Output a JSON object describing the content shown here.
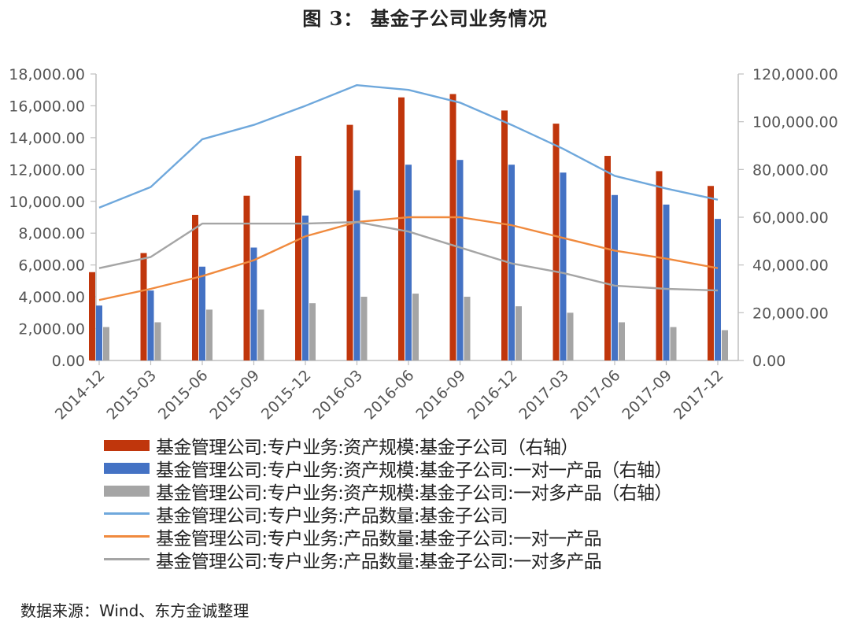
{
  "title": "图 3：   基金子公司业务情况",
  "source": "数据来源：Wind、东方金诚整理",
  "chart_data": {
    "type": "bar",
    "categories": [
      "2014-12",
      "2015-03",
      "2015-06",
      "2015-09",
      "2015-12",
      "2016-03",
      "2016-06",
      "2016-09",
      "2016-12",
      "2017-03",
      "2017-06",
      "2017-09",
      "2017-12"
    ],
    "left_axis": {
      "ylim": [
        0,
        18000
      ],
      "ticks": [
        "0.00",
        "2,000.00",
        "4,000.00",
        "6,000.00",
        "8,000.00",
        "10,000.00",
        "12,000.00",
        "14,000.00",
        "16,000.00",
        "18,000.00"
      ]
    },
    "right_axis": {
      "ylim": [
        0,
        120000
      ],
      "ticks": [
        "0.00",
        "20,000.00",
        "40,000.00",
        "60,000.00",
        "80,000.00",
        "100,000.00",
        "120,000.00"
      ]
    },
    "series": [
      {
        "name": "基金管理公司:专户业务:资产规模:基金子公司（右轴）",
        "kind": "bar",
        "axis": "right",
        "color": "#C0360C",
        "values": [
          37000,
          45000,
          61000,
          69000,
          85700,
          98700,
          110200,
          111600,
          104700,
          99200,
          85700,
          79300,
          73100
        ]
      },
      {
        "name": "基金管理公司:专户业务:资产规模:基金子公司:一对一产品（右轴）",
        "kind": "bar",
        "axis": "right",
        "color": "#4472C4",
        "values": [
          23000,
          29300,
          39300,
          47300,
          60700,
          71300,
          82000,
          84000,
          82000,
          78700,
          69300,
          65300,
          59300
        ]
      },
      {
        "name": "基金管理公司:专户业务:资产规模:基金子公司:一对多产品（右轴）",
        "kind": "bar",
        "axis": "right",
        "color": "#A5A5A5",
        "values": [
          14000,
          16000,
          21300,
          21300,
          24000,
          26700,
          28000,
          26700,
          22700,
          20000,
          16000,
          14000,
          12700
        ]
      },
      {
        "name": "基金管理公司:专户业务:产品数量:基金子公司",
        "kind": "line",
        "axis": "left",
        "color": "#6FA8DC",
        "values": [
          9600,
          10900,
          13900,
          14800,
          16000,
          17300,
          17000,
          16200,
          14800,
          13300,
          11600,
          10800,
          10100
        ]
      },
      {
        "name": "基金管理公司:专户业务:产品数量:基金子公司:一对一产品",
        "kind": "line",
        "axis": "left",
        "color": "#F08A3E",
        "values": [
          3800,
          4500,
          5300,
          6300,
          7800,
          8700,
          9000,
          9000,
          8500,
          7700,
          6900,
          6400,
          5800
        ]
      },
      {
        "name": "基金管理公司:专户业务:产品数量:基金子公司:一对多产品",
        "kind": "line",
        "axis": "left",
        "color": "#A5A5A5",
        "values": [
          5800,
          6500,
          8600,
          8600,
          8600,
          8700,
          8100,
          7100,
          6100,
          5500,
          4700,
          4500,
          4400
        ]
      }
    ]
  }
}
